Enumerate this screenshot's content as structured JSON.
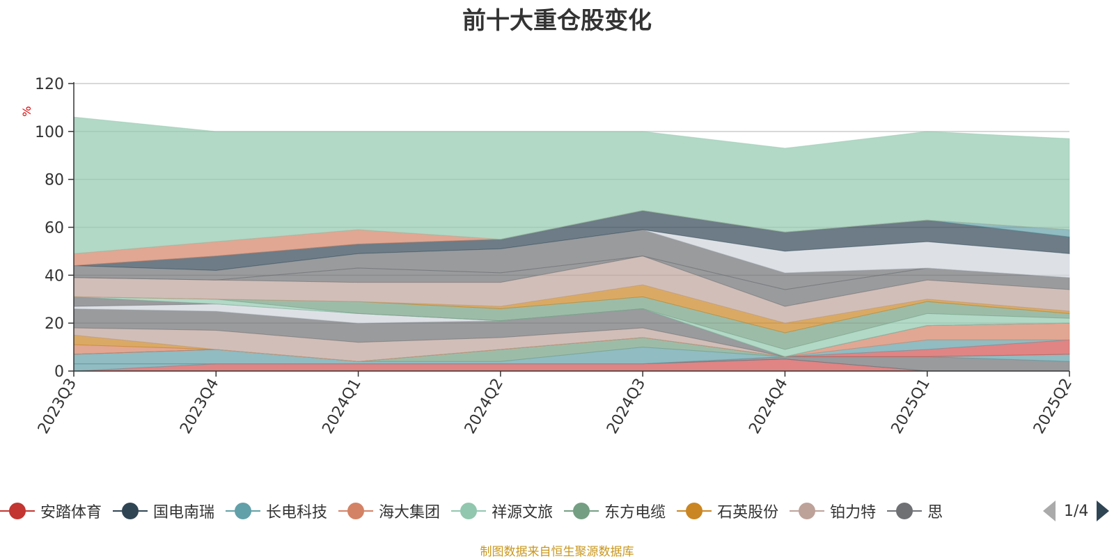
{
  "title": "前十大重仓股变化",
  "source": "制图数据来自恒生聚源数据库",
  "legend": {
    "items": [
      {
        "label": "安踏体育",
        "color": "#c23531"
      },
      {
        "label": "国电南瑞",
        "color": "#2f4554"
      },
      {
        "label": "长电科技",
        "color": "#61a0a8"
      },
      {
        "label": "海大集团",
        "color": "#d48265"
      },
      {
        "label": "祥源文旅",
        "color": "#91c7ae"
      },
      {
        "label": "东方电缆",
        "color": "#749f83"
      },
      {
        "label": "石英股份",
        "color": "#ca8622"
      },
      {
        "label": "铂力特",
        "color": "#bda29a"
      },
      {
        "label": "思",
        "color": "#6e7074"
      }
    ],
    "page": "1/4"
  },
  "chart_data": {
    "type": "area",
    "stacked": true,
    "title": "前十大重仓股变化",
    "xlabel": "",
    "ylabel": "%",
    "x": [
      "2023Q3",
      "2023Q4",
      "2024Q1",
      "2024Q2",
      "2024Q3",
      "2024Q4",
      "2025Q1",
      "2025Q2"
    ],
    "ylim": [
      0,
      120
    ],
    "yticks": [
      0,
      20,
      40,
      60,
      80,
      100,
      120
    ],
    "grid": true,
    "series": [
      {
        "name": "安踏体育",
        "color": "#d45050",
        "values": [
          0,
          3,
          3,
          3,
          3,
          5,
          0,
          0
        ]
      },
      {
        "name": "",
        "color": "#61a0a8",
        "values": [
          3,
          0,
          0,
          0,
          0,
          0,
          0,
          0
        ]
      },
      {
        "name": "",
        "color": "#6e7074",
        "values": [
          0,
          0,
          0,
          0,
          0,
          1,
          6,
          4
        ]
      },
      {
        "name": "",
        "color": "#61a0a8",
        "values": [
          4,
          6,
          1,
          1,
          7,
          0,
          0,
          3
        ]
      },
      {
        "name": "",
        "color": "#749f83",
        "values": [
          0,
          0,
          0,
          5,
          4,
          0,
          0,
          0
        ]
      },
      {
        "name": "",
        "color": "#d45050",
        "values": [
          0,
          0,
          0,
          0,
          0,
          0,
          3,
          6
        ]
      },
      {
        "name": "",
        "color": "#61a0a8",
        "values": [
          0,
          0,
          0,
          0,
          0,
          0,
          4,
          0
        ]
      },
      {
        "name": "",
        "color": "#d48265",
        "values": [
          4,
          0,
          0,
          0,
          0,
          0,
          6,
          7
        ]
      },
      {
        "name": "",
        "color": "#ca8622",
        "values": [
          4,
          0,
          0,
          0,
          0,
          0,
          0,
          0
        ]
      },
      {
        "name": "",
        "color": "#bda29a",
        "values": [
          3,
          8,
          8,
          5,
          4,
          0,
          0,
          0
        ]
      },
      {
        "name": "",
        "color": "#6e7074",
        "values": [
          8,
          8,
          8,
          7,
          8,
          0,
          0,
          0
        ]
      },
      {
        "name": "",
        "color": "#ced4dc",
        "values": [
          1,
          3,
          4,
          0,
          0,
          0,
          0,
          0
        ]
      },
      {
        "name": "",
        "color": "#6e7074",
        "values": [
          4,
          0,
          0,
          0,
          0,
          0,
          0,
          0
        ]
      },
      {
        "name": "",
        "color": "#91c7ae",
        "values": [
          0,
          2,
          0,
          0,
          0,
          3,
          5,
          2
        ]
      },
      {
        "name": "",
        "color": "#749f83",
        "values": [
          0,
          0,
          5,
          5,
          5,
          7,
          5,
          2
        ]
      },
      {
        "name": "",
        "color": "#ca8622",
        "values": [
          0,
          0,
          0,
          1,
          5,
          4,
          1,
          1
        ]
      },
      {
        "name": "",
        "color": "#bda29a",
        "values": [
          8,
          8,
          8,
          10,
          12,
          7,
          8,
          9
        ]
      },
      {
        "name": "",
        "color": "#6e7074",
        "values": [
          0,
          0,
          6,
          4,
          0,
          7,
          5,
          5
        ]
      },
      {
        "name": "",
        "color": "#6e7074",
        "values": [
          5,
          4,
          6,
          10,
          11,
          7,
          0,
          0
        ]
      },
      {
        "name": "",
        "color": "#ced4dc",
        "values": [
          0,
          0,
          0,
          0,
          0,
          9,
          11,
          10
        ]
      },
      {
        "name": "",
        "color": "#2f4554",
        "values": [
          0,
          6,
          4,
          4,
          8,
          8,
          9,
          7
        ]
      },
      {
        "name": "",
        "color": "#61a0a8",
        "values": [
          0,
          0,
          0,
          0,
          0,
          0,
          0,
          3
        ]
      },
      {
        "name": "",
        "color": "#d48265",
        "values": [
          5,
          6,
          6,
          0,
          0,
          0,
          0,
          0
        ]
      },
      {
        "name": "",
        "color": "#91c7ae",
        "values": [
          57,
          46,
          41,
          45,
          33,
          35,
          37,
          38
        ]
      }
    ]
  }
}
